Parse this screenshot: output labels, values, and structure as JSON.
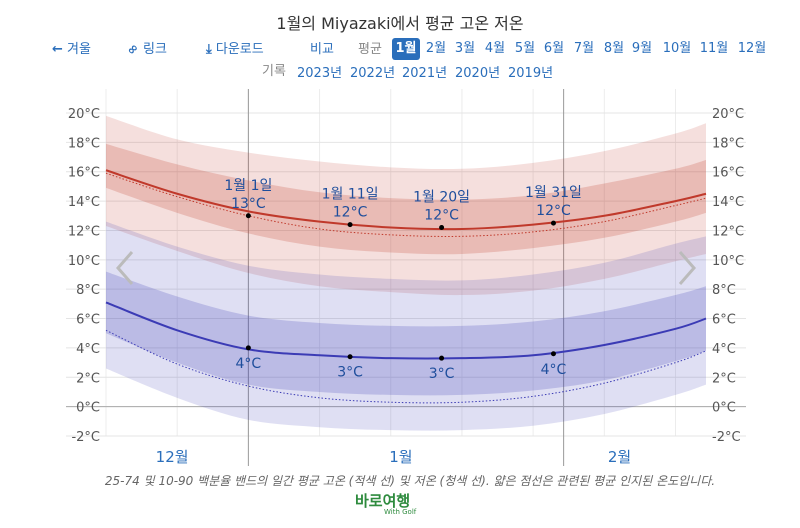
{
  "title": "1월의 Miyazaki에서 평균 고온 저온",
  "nav": {
    "back_label": "겨울",
    "link_label": "링크",
    "download_label": "다운로드",
    "compare_label": "비교",
    "average_label": "평균",
    "months": [
      "1월",
      "2월",
      "3월",
      "4월",
      "5월",
      "6월",
      "7월",
      "8월",
      "9월",
      "10월",
      "11월",
      "12월"
    ],
    "active_month": "1월"
  },
  "history": {
    "label": "기록",
    "years": [
      "2023년",
      "2022년",
      "2021년",
      "2020년",
      "2019년"
    ]
  },
  "chart_data": {
    "type": "area",
    "title": "1월의 Miyazaki에서 평균 고온 저온",
    "y_unit": "°C",
    "ylim": [
      -2,
      20
    ],
    "yticks": [
      -2,
      0,
      2,
      4,
      6,
      8,
      10,
      12,
      14,
      16,
      18,
      20
    ],
    "ytick_labels": [
      "-2°C",
      "0°C",
      "2°C",
      "4°C",
      "6°C",
      "8°C",
      "10°C",
      "12°C",
      "14°C",
      "16°C",
      "18°C",
      "20°C"
    ],
    "xlim": [
      -14,
      45
    ],
    "x_unit": "day offset from Jan 1 (Dec 18 = -14, Feb 14 = 45)",
    "month_labels": [
      {
        "label": "12월",
        "x": -7.5
      },
      {
        "label": "1월",
        "x": 15
      },
      {
        "label": "2월",
        "x": 36.5
      }
    ],
    "month_boundaries": [
      0,
      31
    ],
    "x": [
      -14,
      -7,
      0,
      7,
      14,
      21,
      28,
      35,
      42,
      45
    ],
    "series": [
      {
        "name": "평균 고온",
        "color": "#c0392b",
        "mean": [
          16.1,
          14.5,
          13.3,
          12.6,
          12.2,
          12.1,
          12.4,
          13.0,
          14.0,
          14.5
        ],
        "p25": [
          14.9,
          13.2,
          11.8,
          10.9,
          10.5,
          10.4,
          10.8,
          11.5,
          12.6,
          13.2
        ],
        "p75": [
          17.9,
          16.5,
          15.4,
          14.6,
          14.2,
          14.1,
          14.4,
          15.2,
          16.2,
          16.8
        ],
        "p10": [
          12.3,
          10.6,
          9.1,
          8.2,
          7.8,
          7.6,
          7.9,
          8.7,
          9.9,
          10.4
        ],
        "p90": [
          19.8,
          18.2,
          17.3,
          16.7,
          16.3,
          16.2,
          16.6,
          17.4,
          18.6,
          19.3
        ],
        "normal": [
          15.9,
          14.3,
          13.0,
          12.1,
          11.7,
          11.6,
          11.9,
          12.6,
          13.7,
          14.2
        ]
      },
      {
        "name": "평균 저온",
        "color": "#3b3bb5",
        "mean": [
          7.1,
          5.2,
          3.9,
          3.5,
          3.3,
          3.3,
          3.5,
          4.2,
          5.3,
          6.0
        ],
        "p25": [
          5.0,
          3.0,
          1.5,
          1.0,
          0.8,
          0.8,
          1.1,
          1.8,
          3.1,
          3.8
        ],
        "p75": [
          9.2,
          7.5,
          6.2,
          5.7,
          5.5,
          5.5,
          5.8,
          6.5,
          7.6,
          8.2
        ],
        "p10": [
          2.6,
          0.6,
          -0.9,
          -1.4,
          -1.6,
          -1.6,
          -1.3,
          -0.5,
          0.8,
          1.5
        ],
        "normal": [
          5.2,
          2.9,
          1.4,
          0.6,
          0.3,
          0.3,
          0.7,
          1.6,
          3.0,
          3.8
        ],
        "p90": [
          12.6,
          10.9,
          9.6,
          9.0,
          8.7,
          8.6,
          9.0,
          9.8,
          11.1,
          11.6
        ]
      }
    ],
    "annotations": [
      {
        "date": "1월 1일",
        "x": 0,
        "high": 13,
        "low": 4,
        "high_label": "13°C",
        "low_label": "4°C"
      },
      {
        "date": "1월 11일",
        "x": 10,
        "high": 12.4,
        "low": 3.4,
        "high_label": "12°C",
        "low_label": "3°C"
      },
      {
        "date": "1월 20일",
        "x": 19,
        "high": 12.2,
        "low": 3.3,
        "high_label": "12°C",
        "low_label": "3°C"
      },
      {
        "date": "1월 31일",
        "x": 30,
        "high": 12.5,
        "low": 3.6,
        "high_label": "12°C",
        "low_label": "4°C"
      }
    ]
  },
  "caption": "25-74 및 10-90 백분율 밴드의 일간 평균 고온 (적색 선) 및 저온 (청색 선). 얇은 점선은 관련된 평균 인지된 온도입니다.",
  "logo": {
    "text": "바로여행",
    "subtext": "With Golf"
  }
}
